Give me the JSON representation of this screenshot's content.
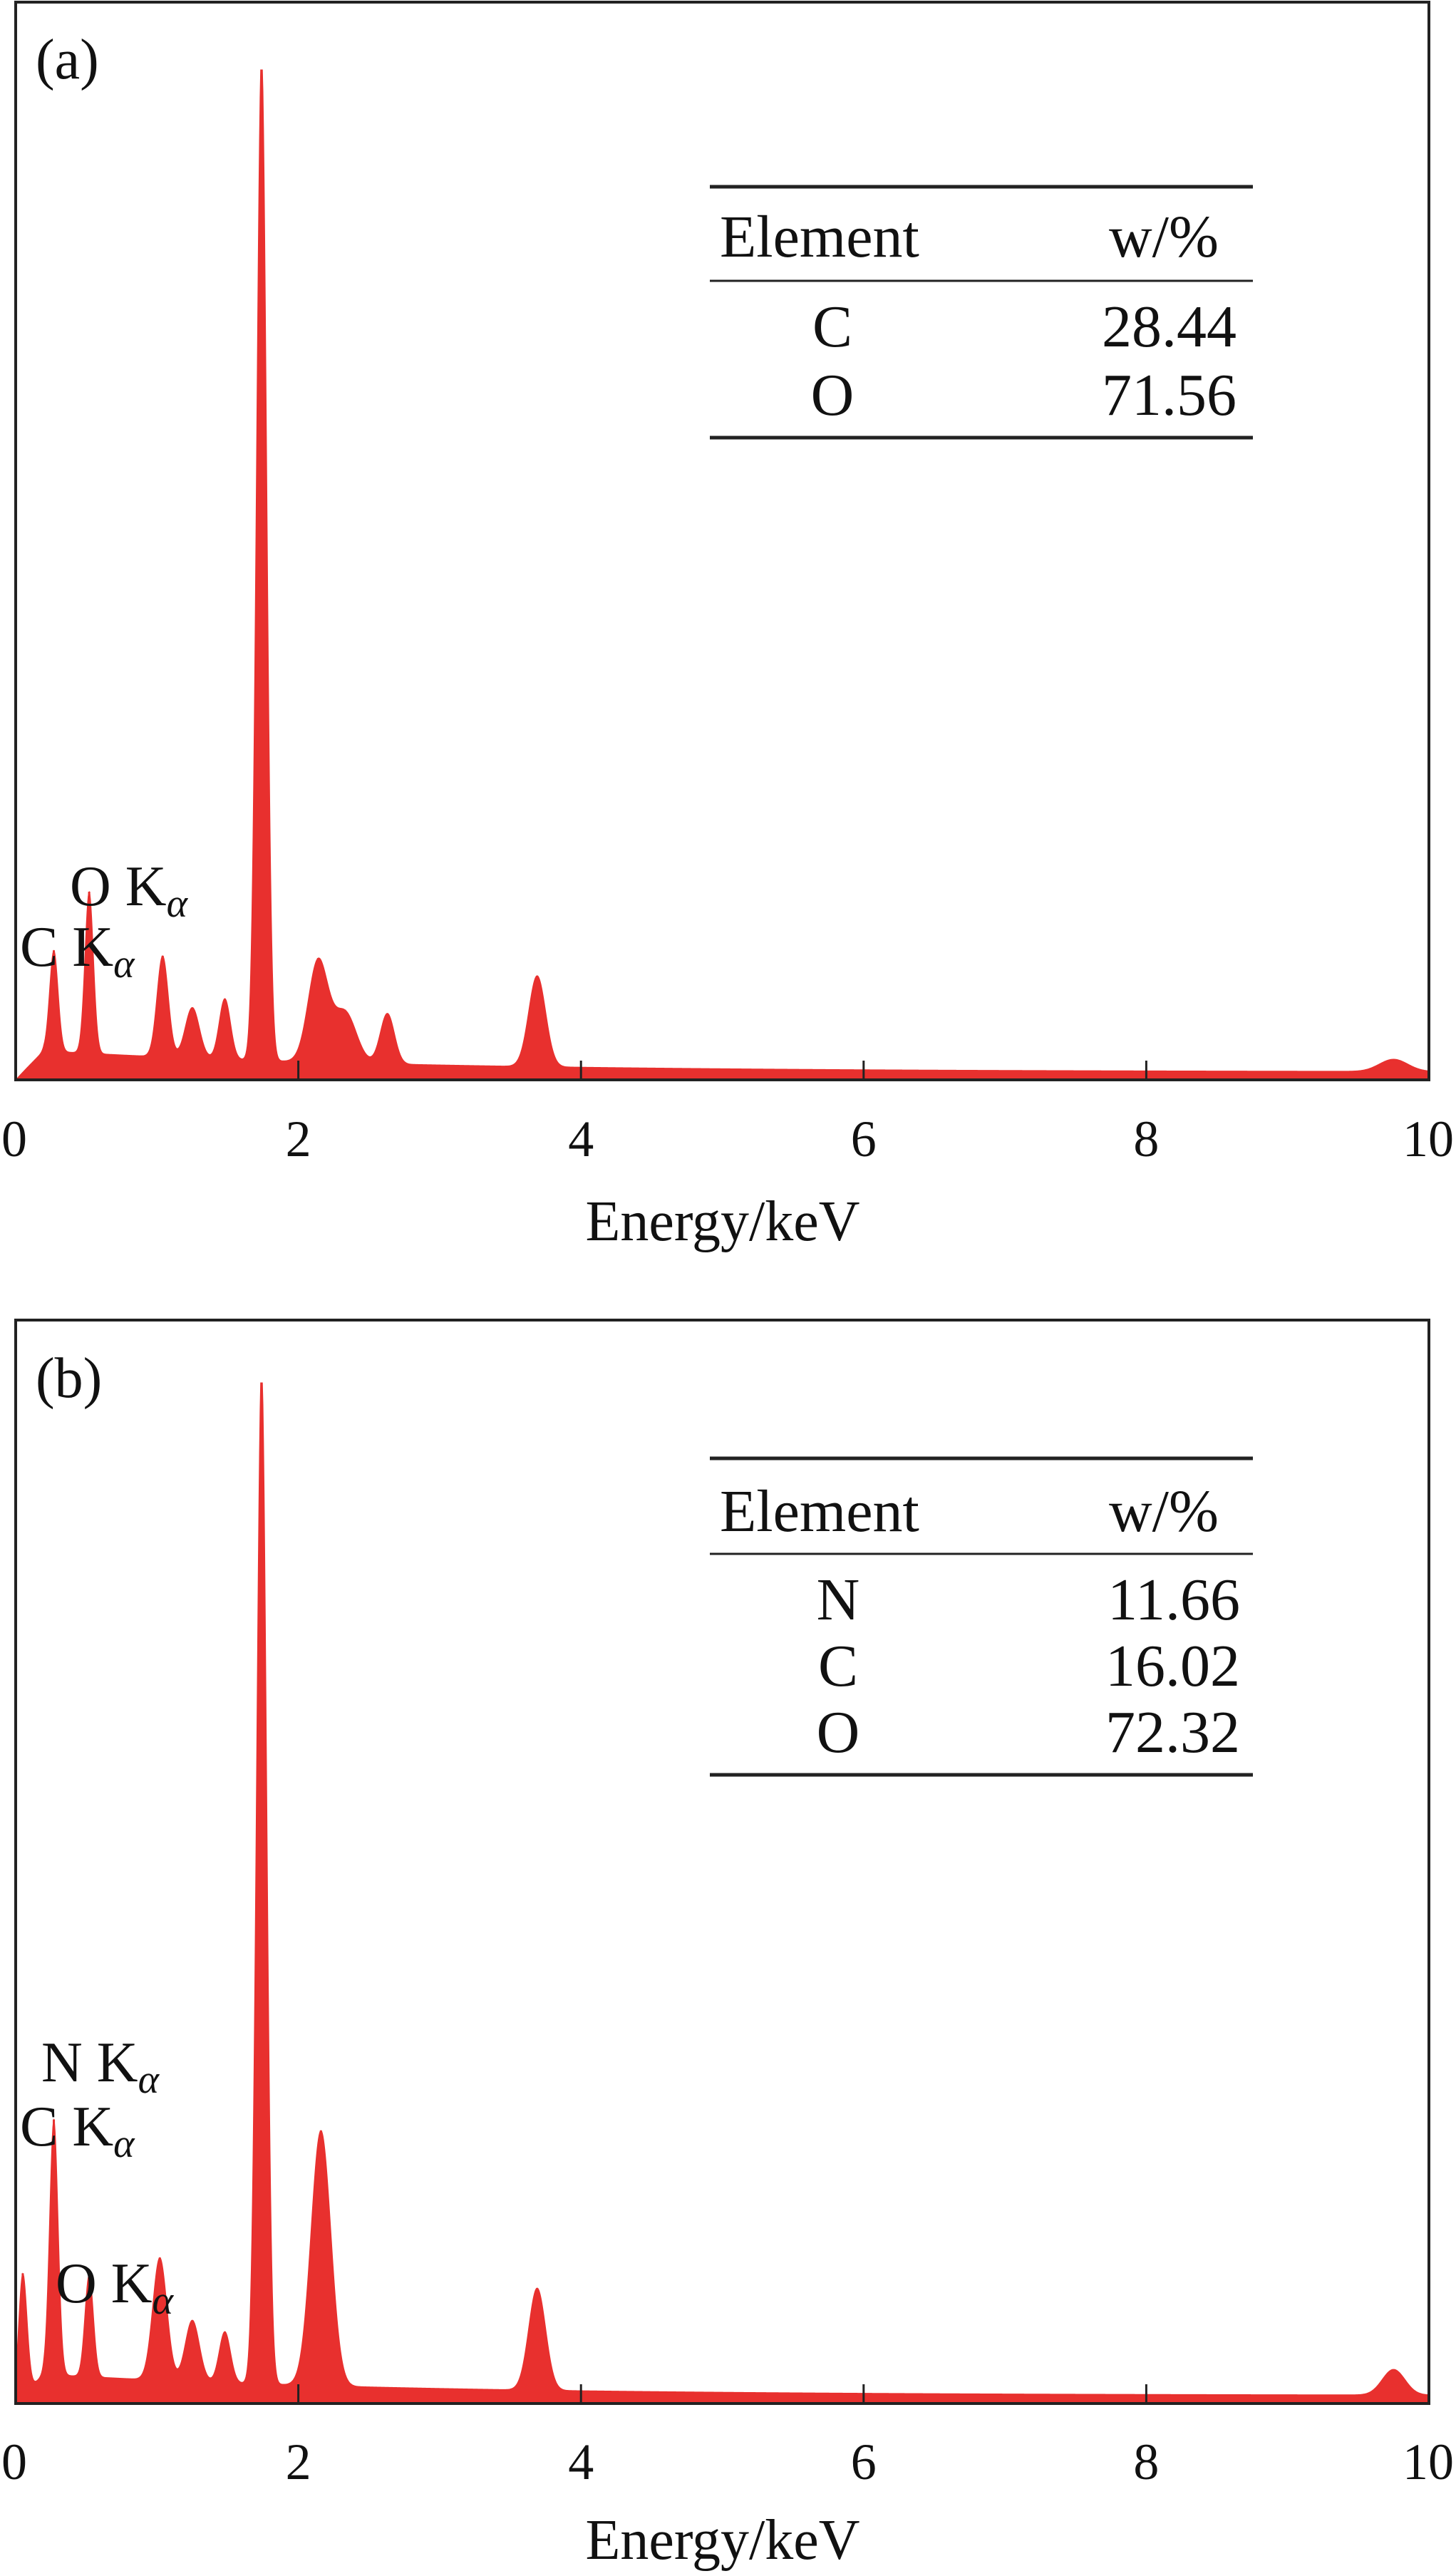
{
  "chart_data": [
    {
      "type": "area",
      "panel_label": "(a)",
      "xlabel": "Energy/keV",
      "ylabel": "",
      "xlim": [
        0,
        10
      ],
      "ylim": [
        0,
        1.0
      ],
      "x_ticks": [
        "0",
        "2",
        "4",
        "6",
        "8",
        "10"
      ],
      "color": "#e8302e",
      "peaks": [
        {
          "keV": 0.27,
          "height": 0.1,
          "width": 0.03
        },
        {
          "keV": 0.52,
          "height": 0.16,
          "width": 0.03
        },
        {
          "keV": 1.04,
          "height": 0.1,
          "width": 0.04
        },
        {
          "keV": 1.25,
          "height": 0.05,
          "width": 0.05
        },
        {
          "keV": 1.48,
          "height": 0.06,
          "width": 0.04
        },
        {
          "keV": 1.74,
          "height": 1.0,
          "width": 0.035
        },
        {
          "keV": 2.14,
          "height": 0.1,
          "width": 0.07
        },
        {
          "keV": 2.33,
          "height": 0.05,
          "width": 0.08
        },
        {
          "keV": 2.63,
          "height": 0.05,
          "width": 0.05
        },
        {
          "keV": 3.69,
          "height": 0.09,
          "width": 0.06
        },
        {
          "keV": 9.75,
          "height": 0.012,
          "width": 0.1
        }
      ],
      "annotations": [
        {
          "element": "O",
          "line": "K",
          "sub": "α",
          "keV": 0.52
        },
        {
          "element": "C",
          "line": "K",
          "sub": "α",
          "keV": 0.27
        }
      ],
      "table": {
        "headers": [
          "Element",
          "w/%"
        ],
        "rows": [
          [
            "C",
            "28.44"
          ],
          [
            "O",
            "71.56"
          ]
        ]
      }
    },
    {
      "type": "area",
      "panel_label": "(b)",
      "xlabel": "Energy/keV",
      "ylabel": "",
      "xlim": [
        0,
        10
      ],
      "ylim": [
        0,
        1.0
      ],
      "x_ticks": [
        "0",
        "2",
        "4",
        "6",
        "8",
        "10"
      ],
      "color": "#e8302e",
      "peaks": [
        {
          "keV": 0.05,
          "height": 0.12,
          "width": 0.03
        },
        {
          "keV": 0.27,
          "height": 0.25,
          "width": 0.03
        },
        {
          "keV": 0.52,
          "height": 0.1,
          "width": 0.03
        },
        {
          "keV": 1.02,
          "height": 0.12,
          "width": 0.05
        },
        {
          "keV": 1.25,
          "height": 0.06,
          "width": 0.05
        },
        {
          "keV": 1.48,
          "height": 0.05,
          "width": 0.04
        },
        {
          "keV": 1.74,
          "height": 1.0,
          "width": 0.035
        },
        {
          "keV": 2.16,
          "height": 0.25,
          "width": 0.07
        },
        {
          "keV": 3.69,
          "height": 0.1,
          "width": 0.06
        },
        {
          "keV": 9.75,
          "height": 0.025,
          "width": 0.08
        }
      ],
      "annotations": [
        {
          "element": "N",
          "line": "K",
          "sub": "α",
          "keV": 0.39
        },
        {
          "element": "C",
          "line": "K",
          "sub": "α",
          "keV": 0.27
        },
        {
          "element": "O",
          "line": "K",
          "sub": "α",
          "keV": 0.52
        }
      ],
      "table": {
        "headers": [
          "Element",
          "w/%"
        ],
        "rows": [
          [
            "N",
            "11.66"
          ],
          [
            "C",
            "16.02"
          ],
          [
            "O",
            "72.32"
          ]
        ]
      }
    }
  ]
}
